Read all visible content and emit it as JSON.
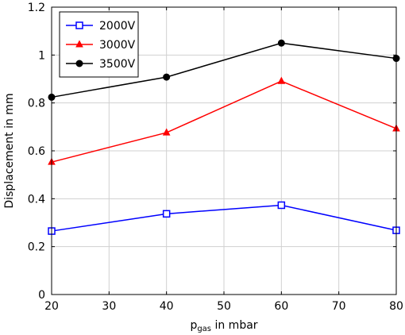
{
  "chart_data": {
    "type": "line",
    "x": [
      20,
      40,
      60,
      80
    ],
    "series": [
      {
        "name": "2000V",
        "values": [
          0.265,
          0.337,
          0.373,
          0.268
        ],
        "color": "#0000ff",
        "marker": "square-open"
      },
      {
        "name": "3000V",
        "values": [
          0.553,
          0.676,
          0.891,
          0.693
        ],
        "color": "#ff0000",
        "marker": "triangle-filled"
      },
      {
        "name": "3500V",
        "values": [
          0.824,
          0.908,
          1.05,
          0.986
        ],
        "color": "#000000",
        "marker": "circle-filled"
      }
    ],
    "xlabel": "p",
    "xlabel_sub": "gas",
    "xlabel_rest": " in mbar",
    "ylabel": "Displacement in mm",
    "xlim": [
      20,
      80
    ],
    "ylim": [
      0,
      1.2
    ],
    "xticks": [
      "20",
      "30",
      "40",
      "50",
      "60",
      "70",
      "80"
    ],
    "yticks": [
      "0",
      "0.2",
      "0.4",
      "0.6",
      "0.8",
      "1",
      "1.2"
    ],
    "grid": true,
    "legend_position": "top-left"
  }
}
